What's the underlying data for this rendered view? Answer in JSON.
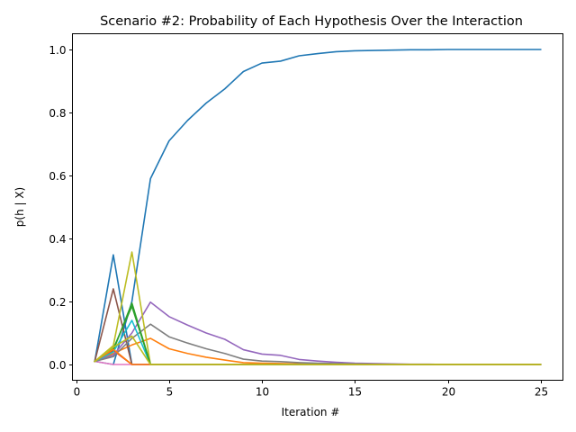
{
  "chart_data": {
    "type": "line",
    "title": "Scenario #2: Probability of Each Hypothesis Over the Interaction",
    "xlabel": "Iteration #",
    "ylabel": "p(h | X)",
    "xlim": [
      -0.2,
      26.2
    ],
    "ylim": [
      -0.05,
      1.05
    ],
    "xticks": [
      0,
      5,
      10,
      15,
      20,
      25
    ],
    "yticks": [
      0.0,
      0.2,
      0.4,
      0.6,
      0.8,
      1.0
    ],
    "xtick_labels": [
      "0",
      "5",
      "10",
      "15",
      "20",
      "25"
    ],
    "ytick_labels": [
      "0.0",
      "0.2",
      "0.4",
      "0.6",
      "0.8",
      "1.0"
    ],
    "grid": false,
    "legend": "none",
    "series": [
      {
        "color": "#1f77b4",
        "x": [
          1,
          2,
          3,
          4,
          5,
          6,
          7,
          8,
          9,
          10,
          11,
          12,
          13,
          14,
          15,
          16,
          17,
          18,
          19,
          20,
          21,
          22,
          23,
          24,
          25
        ],
        "values": [
          0.01,
          0.0,
          0.2,
          0.59,
          0.71,
          0.775,
          0.83,
          0.875,
          0.93,
          0.957,
          0.963,
          0.98,
          0.987,
          0.993,
          0.996,
          0.997,
          0.998,
          0.999,
          0.999,
          1.0,
          1.0,
          1.0,
          1.0,
          1.0,
          1.0
        ]
      },
      {
        "color": "#1f77b4",
        "x": [
          1,
          2,
          3,
          4,
          5,
          6,
          7,
          8,
          9,
          10,
          11,
          12,
          13,
          14,
          15,
          16,
          17,
          18,
          19,
          20,
          21,
          22,
          23,
          24,
          25
        ],
        "values": [
          0.01,
          0.348,
          0.0,
          0.0,
          0.0,
          0.0,
          0.0,
          0.0,
          0.0,
          0.0,
          0.0,
          0.0,
          0.0,
          0.0,
          0.0,
          0.0,
          0.0,
          0.0,
          0.0,
          0.0,
          0.0,
          0.0,
          0.0,
          0.0,
          0.0
        ]
      },
      {
        "color": "#ff7f0e",
        "x": [
          1,
          2,
          3,
          4,
          5,
          6,
          7,
          8,
          9,
          10,
          11,
          12,
          13,
          14,
          15,
          16,
          17,
          18,
          19,
          20,
          21,
          22,
          23,
          24,
          25
        ],
        "values": [
          0.01,
          0.035,
          0.062,
          0.083,
          0.05,
          0.035,
          0.023,
          0.014,
          0.006,
          0.004,
          0.003,
          0.002,
          0.001,
          0.001,
          0.0,
          0.0,
          0.0,
          0.0,
          0.0,
          0.0,
          0.0,
          0.0,
          0.0,
          0.0,
          0.0
        ]
      },
      {
        "color": "#2ca02c",
        "x": [
          1,
          2,
          3,
          4,
          5,
          6,
          7,
          8,
          9,
          10,
          11,
          12,
          13,
          14,
          15,
          16,
          17,
          18,
          19,
          20,
          21,
          22,
          23,
          24,
          25
        ],
        "values": [
          0.01,
          0.045,
          0.195,
          0.0,
          0.0,
          0.0,
          0.0,
          0.0,
          0.0,
          0.0,
          0.0,
          0.0,
          0.0,
          0.0,
          0.0,
          0.0,
          0.0,
          0.0,
          0.0,
          0.0,
          0.0,
          0.0,
          0.0,
          0.0,
          0.0
        ]
      },
      {
        "color": "#d62728",
        "x": [
          1,
          2,
          3,
          4,
          5,
          6,
          7,
          8,
          9,
          10,
          11,
          12,
          13,
          14,
          15,
          16,
          17,
          18,
          19,
          20,
          21,
          22,
          23,
          24,
          25
        ],
        "values": [
          0.01,
          0.045,
          0.0,
          0.0,
          0.0,
          0.0,
          0.0,
          0.0,
          0.0,
          0.0,
          0.0,
          0.0,
          0.0,
          0.0,
          0.0,
          0.0,
          0.0,
          0.0,
          0.0,
          0.0,
          0.0,
          0.0,
          0.0,
          0.0,
          0.0
        ]
      },
      {
        "color": "#9467bd",
        "x": [
          1,
          2,
          3,
          4,
          5,
          6,
          7,
          8,
          9,
          10,
          11,
          12,
          13,
          14,
          15,
          16,
          17,
          18,
          19,
          20,
          21,
          22,
          23,
          24,
          25
        ],
        "values": [
          0.01,
          0.03,
          0.1,
          0.198,
          0.152,
          0.125,
          0.1,
          0.08,
          0.047,
          0.033,
          0.029,
          0.016,
          0.011,
          0.007,
          0.004,
          0.003,
          0.002,
          0.001,
          0.001,
          0.0,
          0.0,
          0.0,
          0.0,
          0.0,
          0.0
        ]
      },
      {
        "color": "#8c564b",
        "x": [
          1,
          2,
          3,
          4,
          5,
          6,
          7,
          8,
          9,
          10,
          11,
          12,
          13,
          14,
          15,
          16,
          17,
          18,
          19,
          20,
          21,
          22,
          23,
          24,
          25
        ],
        "values": [
          0.01,
          0.24,
          0.0,
          0.0,
          0.0,
          0.0,
          0.0,
          0.0,
          0.0,
          0.0,
          0.0,
          0.0,
          0.0,
          0.0,
          0.0,
          0.0,
          0.0,
          0.0,
          0.0,
          0.0,
          0.0,
          0.0,
          0.0,
          0.0,
          0.0
        ]
      },
      {
        "color": "#e377c2",
        "x": [
          1,
          2,
          3,
          4,
          5,
          6,
          7,
          8,
          9,
          10,
          11,
          12,
          13,
          14,
          15,
          16,
          17,
          18,
          19,
          20,
          21,
          22,
          23,
          24,
          25
        ],
        "values": [
          0.01,
          0.0,
          0.0,
          0.0,
          0.0,
          0.0,
          0.0,
          0.0,
          0.0,
          0.0,
          0.0,
          0.0,
          0.0,
          0.0,
          0.0,
          0.0,
          0.0,
          0.0,
          0.0,
          0.0,
          0.0,
          0.0,
          0.0,
          0.0,
          0.0
        ]
      },
      {
        "color": "#7f7f7f",
        "x": [
          1,
          2,
          3,
          4,
          5,
          6,
          7,
          8,
          9,
          10,
          11,
          12,
          13,
          14,
          15,
          16,
          17,
          18,
          19,
          20,
          21,
          22,
          23,
          24,
          25
        ],
        "values": [
          0.01,
          0.025,
          0.083,
          0.128,
          0.088,
          0.068,
          0.05,
          0.035,
          0.017,
          0.011,
          0.009,
          0.006,
          0.004,
          0.003,
          0.002,
          0.001,
          0.001,
          0.0,
          0.0,
          0.0,
          0.0,
          0.0,
          0.0,
          0.0,
          0.0
        ]
      },
      {
        "color": "#bcbd22",
        "x": [
          1,
          2,
          3,
          4,
          5,
          6,
          7,
          8,
          9,
          10,
          11,
          12,
          13,
          14,
          15,
          16,
          17,
          18,
          19,
          20,
          21,
          22,
          23,
          24,
          25
        ],
        "values": [
          0.01,
          0.06,
          0.357,
          0.0,
          0.0,
          0.0,
          0.0,
          0.0,
          0.0,
          0.0,
          0.0,
          0.0,
          0.0,
          0.0,
          0.0,
          0.0,
          0.0,
          0.0,
          0.0,
          0.0,
          0.0,
          0.0,
          0.0,
          0.0,
          0.0
        ]
      },
      {
        "color": "#17becf",
        "x": [
          1,
          2,
          3,
          4,
          5,
          6,
          7,
          8,
          9,
          10,
          11,
          12,
          13,
          14,
          15,
          16,
          17,
          18,
          19,
          20,
          21,
          22,
          23,
          24,
          25
        ],
        "values": [
          0.01,
          0.04,
          0.14,
          0.0,
          0.0,
          0.0,
          0.0,
          0.0,
          0.0,
          0.0,
          0.0,
          0.0,
          0.0,
          0.0,
          0.0,
          0.0,
          0.0,
          0.0,
          0.0,
          0.0,
          0.0,
          0.0,
          0.0,
          0.0,
          0.0
        ]
      },
      {
        "color": "#2ca02c",
        "x": [
          1,
          2,
          3,
          4,
          5,
          6,
          7,
          8,
          9,
          10,
          11,
          12,
          13,
          14,
          15,
          16,
          17,
          18,
          19,
          20,
          21,
          22,
          23,
          24,
          25
        ],
        "values": [
          0.01,
          0.05,
          0.185,
          0.0,
          0.0,
          0.0,
          0.0,
          0.0,
          0.0,
          0.0,
          0.0,
          0.0,
          0.0,
          0.0,
          0.0,
          0.0,
          0.0,
          0.0,
          0.0,
          0.0,
          0.0,
          0.0,
          0.0,
          0.0,
          0.0
        ]
      },
      {
        "color": "#ff7f0e",
        "x": [
          1,
          2,
          3,
          4,
          5,
          6,
          7,
          8,
          9,
          10,
          11,
          12,
          13,
          14,
          15,
          16,
          17,
          18,
          19,
          20,
          21,
          22,
          23,
          24,
          25
        ],
        "values": [
          0.01,
          0.048,
          0.0,
          0.0,
          0.0,
          0.0,
          0.0,
          0.0,
          0.0,
          0.0,
          0.0,
          0.0,
          0.0,
          0.0,
          0.0,
          0.0,
          0.0,
          0.0,
          0.0,
          0.0,
          0.0,
          0.0,
          0.0,
          0.0,
          0.0
        ]
      },
      {
        "color": "#bcbd22",
        "x": [
          1,
          2,
          3,
          4,
          5,
          6,
          7,
          8,
          9,
          10,
          11,
          12,
          13,
          14,
          15,
          16,
          17,
          18,
          19,
          20,
          21,
          22,
          23,
          24,
          25
        ],
        "values": [
          0.01,
          0.055,
          0.09,
          0.0,
          0.0,
          0.0,
          0.0,
          0.0,
          0.0,
          0.0,
          0.0,
          0.0,
          0.0,
          0.0,
          0.0,
          0.0,
          0.0,
          0.0,
          0.0,
          0.0,
          0.0,
          0.0,
          0.0,
          0.0,
          0.0
        ]
      }
    ]
  }
}
